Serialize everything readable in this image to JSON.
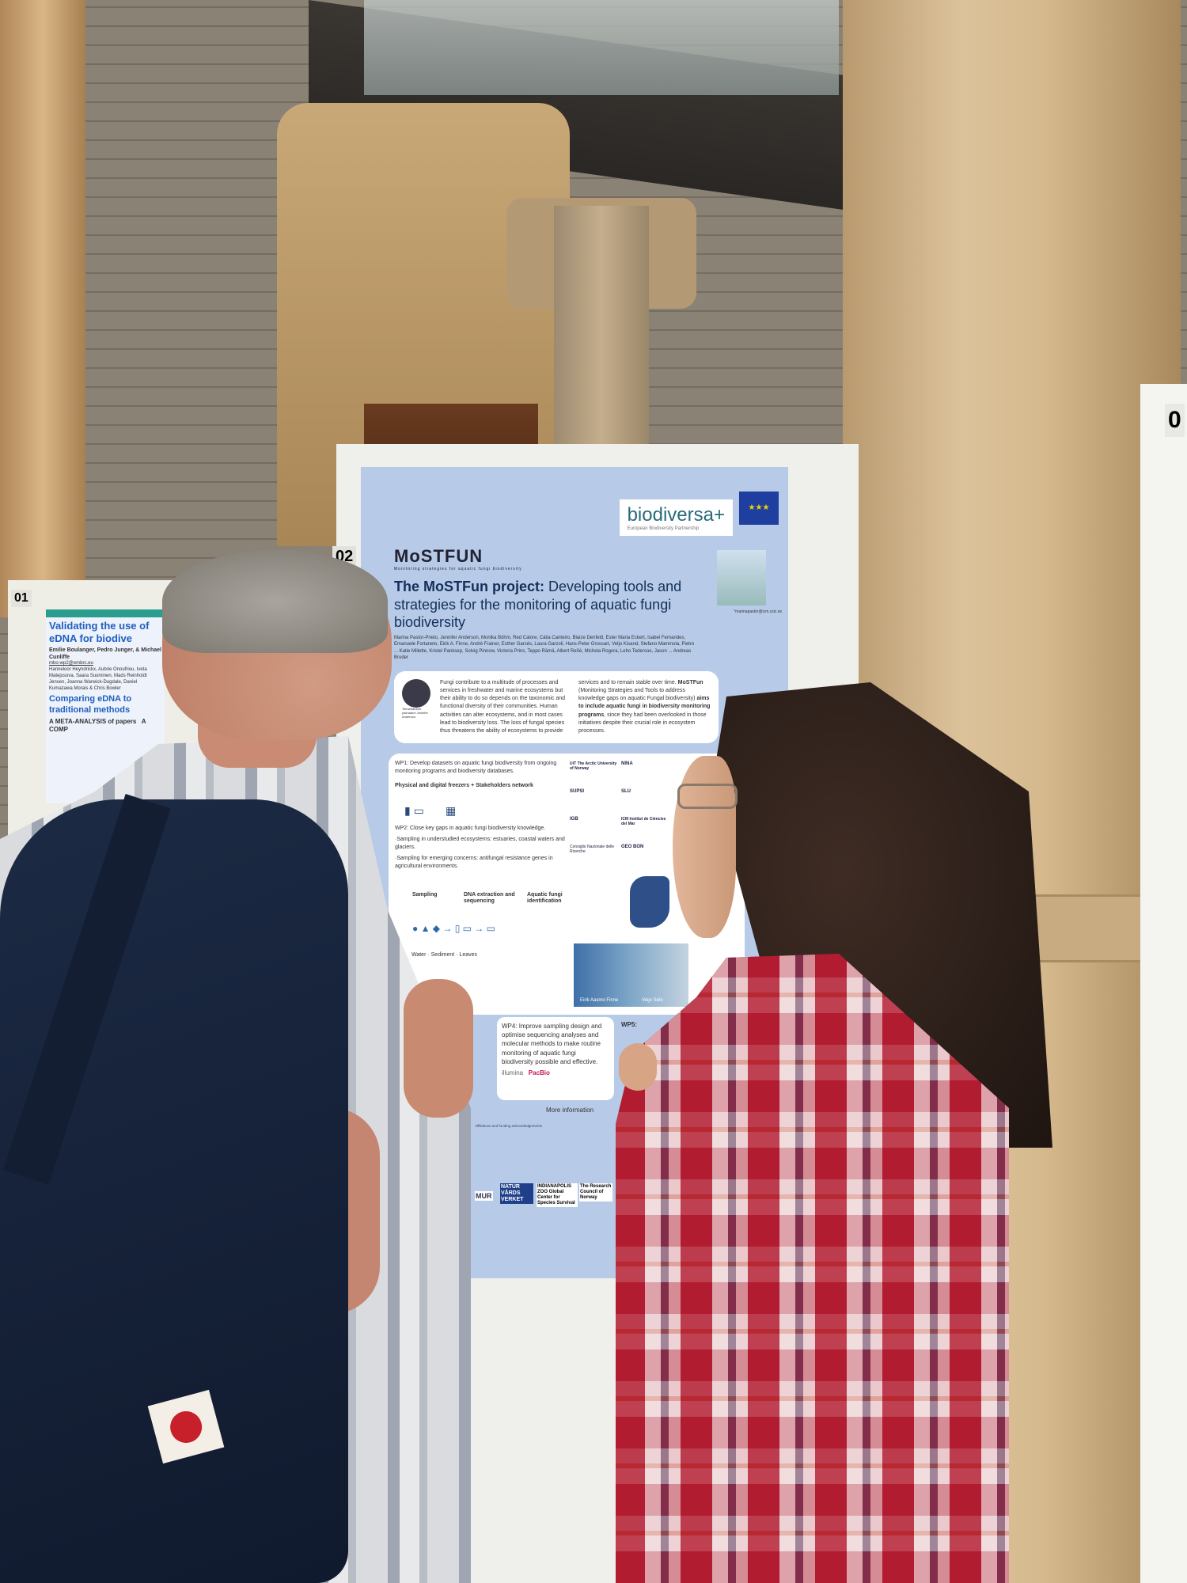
{
  "scene": {
    "description_tags": [
      "poster session",
      "arcade",
      "columns"
    ]
  },
  "poster_01": {
    "board_number": "01",
    "title": "Validating the use of eDNA for biodive",
    "authors": "Emilie Boulanger, Pedro Junger, & Michael Cunliffe",
    "email": "mbo-wp2@embrc.eu",
    "contributors": "Hanneloor Heyndrickx, Aubrie Onoufriou, Iveta Matejusova, Saara Suominen, Mads Reinholdt Jensen, Joanna Warwick-Dugdale, Daniel Kumazawa Morais & Chris Bowler",
    "subtitle": "Comparing eDNA to traditional methods",
    "section_1": "A META-ANALYSIS of papers",
    "section_2": "A COMP"
  },
  "poster_02": {
    "board_number": "02",
    "logo_brand": "biodiversa+",
    "logo_brand_sub": "European Biodiversity Partnership",
    "eu_flag": "eu-flag-icon",
    "project_logo": "MoSTFUN",
    "project_logo_sub": "Monitoring strategies for aquatic fungi biodiversity",
    "title_bold": "The MoSTFun project:",
    "title_rest": " Developing tools and strategies for the monitoring of aquatic fungi biodiversity",
    "authors": "Marina Pastor-Prieto, Jennifer Anderson, Monika Böhm, Red Calore, Cátia Canteiro, Blaize Denfeld, Ester Maria Eckert, Isabel Fernandes, Emanuele Fortaneto, Eirik A. Finne, André Frainer, Esther Garcés, Laura Garzoli, Hans-Peter Grossart, Veljo Kisand, Stefano Mammola, Pietro ... Katie Millette, Kristel Panksep, Solvig Pinnow, Victoria Prins, Teppo Rämä, Albert Reñé, Michela Rogora, Leho Tedersoo, Jason ... Andreas Bruder",
    "email": "*marinapastor@icm.csic.es",
    "intro_left": "Fungi contribute to a multitude of processes and services in freshwater and marine ecosystems but their ability to do so depends on the taxonomic and functional diversity of their communities. Human activities can alter ecosystems, and in most cases lead to biodiversity loss. The loss of fungal species thus threatens the ability of ecosystems to provide",
    "intro_caption": "Tetrachaetum palmatum Jennifer Anderson",
    "intro_right_1": "services and to remain stable over time. ",
    "intro_right_bold1": "MoSTFun",
    "intro_right_2": " (Monitoring Strategies and Tools to address knowledge gaps on aquatic Fungal biodiversity) ",
    "intro_right_bold2": "aims to include aquatic fungi in biodiversity monitoring programs",
    "intro_right_3": ", since they had been overlooked in those initiatives despite their crucial role in ecosystem processes.",
    "wp1": "WP1: Develop datasets on aquatic fungi biodiversity from ongoing monitoring programs and biodiversity databases.",
    "wp1_items": "Physical and digital freezers  +  Stakeholders network",
    "wp2": "WP2: Close key gaps in aquatic fungi biodiversity knowledge.",
    "wp2_b1": "·Sampling in understudied ecosystems: estuaries, coastal waters and glaciers.",
    "wp2_b2": "·Sampling for emerging concerns: antifungal resistance genes in agricultural environments.",
    "steps": [
      "Sampling",
      "DNA extraction and sequencing",
      "Aquatic fungi identification"
    ],
    "sample_types": "Water · Sediment · Leaves",
    "partner_logos": [
      "UiT The Arctic University of Norway",
      "NINA",
      "SUPSI",
      "SLU",
      "IGB",
      "ICM Institut de Ciències del Mar",
      "Consiglio Nazionale delle Ricerche",
      "GEO BON"
    ],
    "photo_credits": [
      "Eirik Aasmo Finne",
      "Veijo Selo"
    ],
    "wp4": "WP4: Improve sampling design and optimise sequencing analyses and molecular methods to make routine monitoring of aquatic fungi biodiversity possible and effective.",
    "wp4_brands": [
      "illumina",
      "PacBio"
    ],
    "wp5": "WP5:",
    "more_info": "More information",
    "funders": [
      "MUR",
      "NATUR VÅRDS VERKET",
      "INDIANAPOLIS ZOO Global Center for Species Survival",
      "The Research Council of Norway"
    ]
  },
  "right_board": {
    "board_number": "0"
  }
}
